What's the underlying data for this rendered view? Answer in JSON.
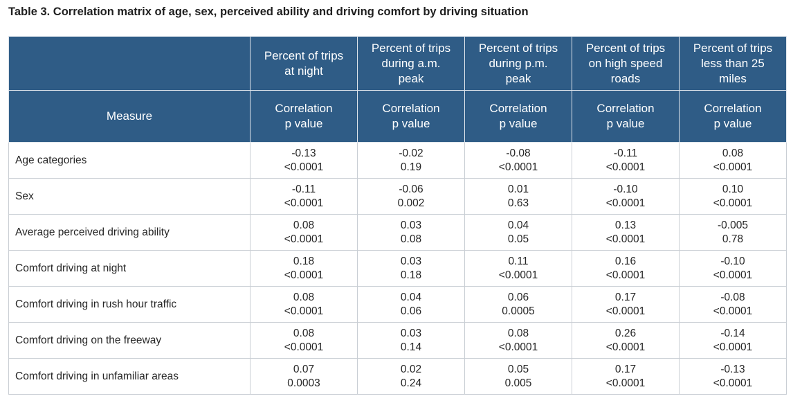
{
  "title": "Table 3. Correlation matrix of age, sex, perceived ability and driving comfort by driving situation",
  "table": {
    "measure_header": "Measure",
    "columns": [
      {
        "header": [
          "Percent of trips",
          "at night"
        ],
        "sub": [
          "Correlation",
          "p value"
        ]
      },
      {
        "header": [
          "Percent of trips",
          "during a.m.",
          "peak"
        ],
        "sub": [
          "Correlation",
          "p value"
        ]
      },
      {
        "header": [
          "Percent of trips",
          "during p.m.",
          "peak"
        ],
        "sub": [
          "Correlation",
          "p value"
        ]
      },
      {
        "header": [
          "Percent of trips",
          "on high speed",
          "roads"
        ],
        "sub": [
          "Correlation",
          "p value"
        ]
      },
      {
        "header": [
          "Percent of trips",
          "less than 25",
          "miles"
        ],
        "sub": [
          "Correlation",
          "p value"
        ]
      }
    ],
    "rows": [
      {
        "label": "Age categories",
        "cells": [
          [
            "-0.13",
            "<0.0001"
          ],
          [
            "-0.02",
            "0.19"
          ],
          [
            "-0.08",
            "<0.0001"
          ],
          [
            "-0.11",
            "<0.0001"
          ],
          [
            "0.08",
            "<0.0001"
          ]
        ]
      },
      {
        "label": "Sex",
        "cells": [
          [
            "-0.11",
            "<0.0001"
          ],
          [
            "-0.06",
            "0.002"
          ],
          [
            "0.01",
            "0.63"
          ],
          [
            "-0.10",
            "<0.0001"
          ],
          [
            "0.10",
            "<0.0001"
          ]
        ]
      },
      {
        "label": "Average perceived driving ability",
        "cells": [
          [
            "0.08",
            "<0.0001"
          ],
          [
            "0.03",
            "0.08"
          ],
          [
            "0.04",
            "0.05"
          ],
          [
            "0.13",
            "<0.0001"
          ],
          [
            "-0.005",
            "0.78"
          ]
        ]
      },
      {
        "label": "Comfort driving at night",
        "cells": [
          [
            "0.18",
            "<0.0001"
          ],
          [
            "0.03",
            "0.18"
          ],
          [
            "0.11",
            "<0.0001"
          ],
          [
            "0.16",
            "<0.0001"
          ],
          [
            "-0.10",
            "<0.0001"
          ]
        ]
      },
      {
        "label": "Comfort driving in rush hour traffic",
        "cells": [
          [
            "0.08",
            "<0.0001"
          ],
          [
            "0.04",
            "0.06"
          ],
          [
            "0.06",
            "0.0005"
          ],
          [
            "0.17",
            "<0.0001"
          ],
          [
            "-0.08",
            "<0.0001"
          ]
        ]
      },
      {
        "label": "Comfort driving on the freeway",
        "cells": [
          [
            "0.08",
            "<0.0001"
          ],
          [
            "0.03",
            "0.14"
          ],
          [
            "0.08",
            "<0.0001"
          ],
          [
            "0.26",
            "<0.0001"
          ],
          [
            "-0.14",
            "<0.0001"
          ]
        ]
      },
      {
        "label": "Comfort driving in unfamiliar areas",
        "cells": [
          [
            "0.07",
            "0.0003"
          ],
          [
            "0.02",
            "0.24"
          ],
          [
            "0.05",
            "0.005"
          ],
          [
            "0.17",
            "<0.0001"
          ],
          [
            "-0.13",
            "<0.0001"
          ]
        ]
      }
    ]
  },
  "colors": {
    "header_bg": "#2f5c86",
    "header_text": "#ffffff",
    "border": "#c9ced4"
  }
}
